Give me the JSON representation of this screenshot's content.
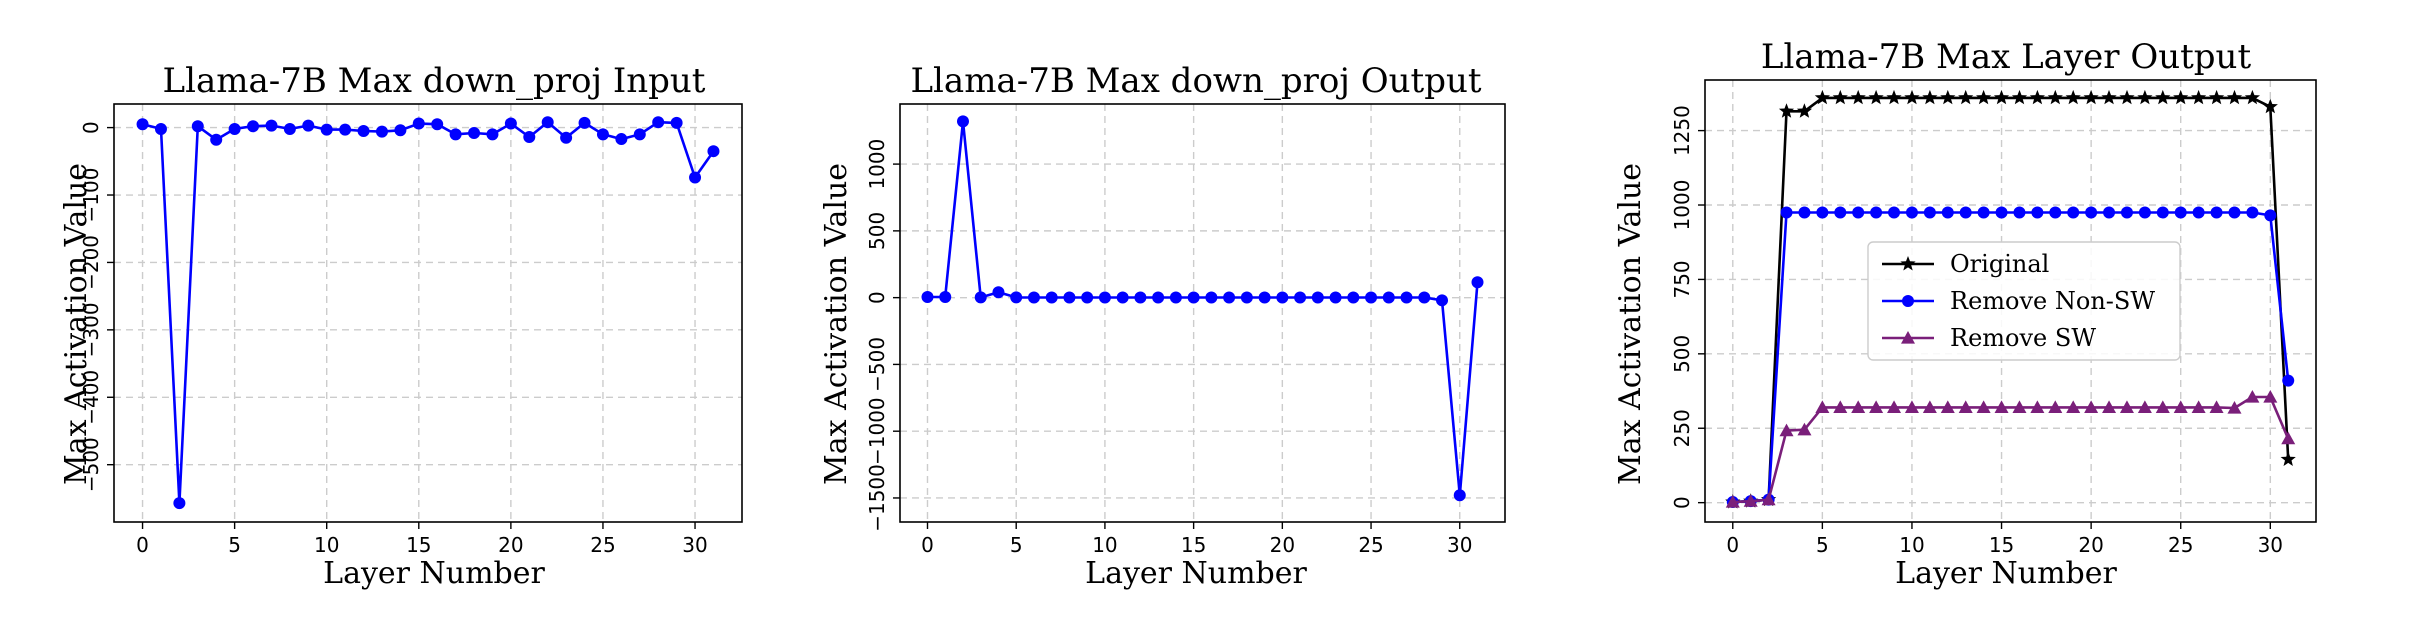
{
  "chart_data": [
    {
      "type": "line",
      "title": "Llama-7B Max down_proj Input",
      "xlabel": "Layer Number",
      "ylabel": "Max Activation Value",
      "xlim": [
        -1.55,
        32.55
      ],
      "ylim": [
        -585,
        35
      ],
      "xticks": [
        0,
        5,
        10,
        15,
        20,
        25,
        30
      ],
      "yticks": [
        0,
        -100,
        -200,
        -300,
        -400,
        -500
      ],
      "grid": true,
      "series": [
        {
          "color": "#0000ff",
          "marker": "circle",
          "x": [
            0,
            1,
            2,
            3,
            4,
            5,
            6,
            7,
            8,
            9,
            10,
            11,
            12,
            13,
            14,
            15,
            16,
            17,
            18,
            19,
            20,
            21,
            22,
            23,
            24,
            25,
            26,
            27,
            28,
            29,
            30,
            31
          ],
          "y": [
            5,
            -2,
            -557,
            2,
            -18,
            -2,
            2,
            3,
            -2,
            3,
            -3,
            -3,
            -5,
            -6,
            -4,
            6,
            5,
            -10,
            -8,
            -10,
            6,
            -14,
            8,
            -15,
            7,
            -10,
            -17,
            -10,
            8,
            7,
            -74,
            -35
          ]
        }
      ]
    },
    {
      "type": "line",
      "title": "Llama-7B Max down_proj Output",
      "xlabel": "Layer Number",
      "ylabel": "Max Activation Value",
      "xlim": [
        -1.55,
        32.55
      ],
      "ylim": [
        -1680,
        1450
      ],
      "xticks": [
        0,
        5,
        10,
        15,
        20,
        25,
        30
      ],
      "yticks": [
        1000,
        500,
        0,
        -500,
        -1000,
        -1500
      ],
      "grid": true,
      "series": [
        {
          "color": "#0000ff",
          "marker": "circle",
          "x": [
            0,
            1,
            2,
            3,
            4,
            5,
            6,
            7,
            8,
            9,
            10,
            11,
            12,
            13,
            14,
            15,
            16,
            17,
            18,
            19,
            20,
            21,
            22,
            23,
            24,
            25,
            26,
            27,
            28,
            29,
            30,
            31
          ],
          "y": [
            5,
            5,
            1320,
            2,
            40,
            2,
            1,
            1,
            1,
            1,
            1,
            1,
            1,
            1,
            1,
            1,
            1,
            1,
            1,
            1,
            1,
            1,
            1,
            1,
            1,
            1,
            1,
            1,
            1,
            -20,
            -1480,
            115
          ]
        }
      ]
    },
    {
      "type": "line",
      "title": "Llama-7B Max Layer Output",
      "xlabel": "Layer Number",
      "ylabel": "Max Activation Value",
      "xlim": [
        -1.55,
        32.55
      ],
      "ylim": [
        -65,
        1420
      ],
      "xticks": [
        0,
        5,
        10,
        15,
        20,
        25,
        30
      ],
      "yticks": [
        0,
        250,
        500,
        750,
        1000,
        1250
      ],
      "grid": true,
      "legend": "center-left",
      "series": [
        {
          "name": "Original",
          "color": "#000000",
          "marker": "star",
          "x": [
            0,
            1,
            2,
            3,
            4,
            5,
            6,
            7,
            8,
            9,
            10,
            11,
            12,
            13,
            14,
            15,
            16,
            17,
            18,
            19,
            20,
            21,
            22,
            23,
            24,
            25,
            26,
            27,
            28,
            29,
            30,
            31
          ],
          "y": [
            2,
            5,
            10,
            1315,
            1315,
            1360,
            1360,
            1360,
            1360,
            1360,
            1360,
            1360,
            1360,
            1360,
            1360,
            1360,
            1360,
            1360,
            1360,
            1360,
            1360,
            1360,
            1360,
            1360,
            1360,
            1360,
            1360,
            1360,
            1360,
            1360,
            1330,
            145
          ]
        },
        {
          "name": "Remove Non-SW",
          "color": "#0000ff",
          "marker": "circle",
          "x": [
            0,
            1,
            2,
            3,
            4,
            5,
            6,
            7,
            8,
            9,
            10,
            11,
            12,
            13,
            14,
            15,
            16,
            17,
            18,
            19,
            20,
            21,
            22,
            23,
            24,
            25,
            26,
            27,
            28,
            29,
            30,
            31
          ],
          "y": [
            2,
            5,
            10,
            975,
            975,
            975,
            975,
            975,
            975,
            975,
            975,
            975,
            975,
            975,
            975,
            975,
            975,
            975,
            975,
            975,
            975,
            975,
            975,
            975,
            975,
            975,
            975,
            975,
            975,
            975,
            965,
            410
          ]
        },
        {
          "name": "Remove SW",
          "color": "#7a1f7a",
          "marker": "triangle",
          "x": [
            0,
            1,
            2,
            3,
            4,
            5,
            6,
            7,
            8,
            9,
            10,
            11,
            12,
            13,
            14,
            15,
            16,
            17,
            18,
            19,
            20,
            21,
            22,
            23,
            24,
            25,
            26,
            27,
            28,
            29,
            30,
            31
          ],
          "y": [
            2,
            5,
            10,
            242,
            245,
            320,
            320,
            320,
            320,
            320,
            320,
            320,
            320,
            320,
            320,
            320,
            320,
            320,
            320,
            320,
            320,
            320,
            320,
            320,
            320,
            320,
            320,
            320,
            318,
            355,
            355,
            215
          ]
        }
      ]
    }
  ]
}
